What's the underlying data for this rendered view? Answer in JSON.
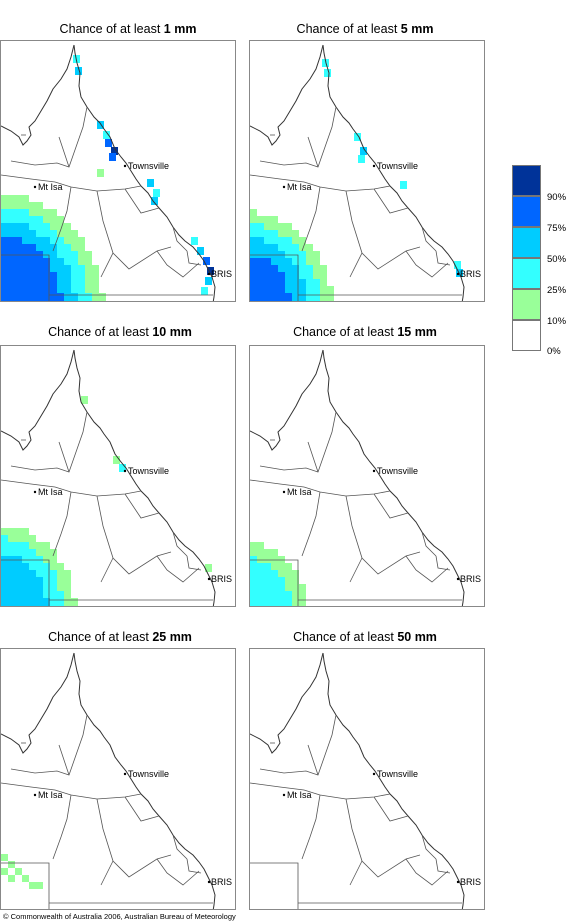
{
  "panels": [
    {
      "title_prefix": "Chance of at least ",
      "threshold": "1 mm",
      "level": 0
    },
    {
      "title_prefix": "Chance of at least ",
      "threshold": "5 mm",
      "level": 1
    },
    {
      "title_prefix": "Chance of at least ",
      "threshold": "10 mm",
      "level": 2
    },
    {
      "title_prefix": "Chance of at least ",
      "threshold": "15 mm",
      "level": 3
    },
    {
      "title_prefix": "Chance of at least ",
      "threshold": "25 mm",
      "level": 4
    },
    {
      "title_prefix": "Chance of at least ",
      "threshold": "50 mm",
      "level": 5
    }
  ],
  "places": {
    "townsville": "Townsville",
    "mt_isa": "Mt Isa",
    "brisbane": "BRIS"
  },
  "legend": {
    "labels": [
      "90%",
      "75%",
      "50%",
      "25%",
      "10%",
      "0%"
    ],
    "colors": [
      "#003399",
      "#0066ff",
      "#00ccff",
      "#33ffff",
      "#99ff99",
      "#ffffff"
    ]
  },
  "copyright": "© Commonwealth of Australia 2006, Australian Bureau of Meteorology"
}
